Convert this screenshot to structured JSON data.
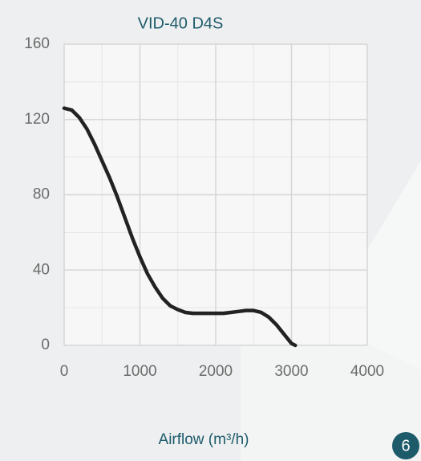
{
  "chart_data": {
    "type": "line",
    "title": "VID-40 D4S",
    "xlabel": "Airflow (m³/h)",
    "badge": "6",
    "x": [
      0,
      100,
      200,
      300,
      400,
      500,
      600,
      700,
      800,
      900,
      1000,
      1100,
      1200,
      1300,
      1400,
      1500,
      1600,
      1700,
      1800,
      1900,
      2000,
      2100,
      2200,
      2300,
      2400,
      2500,
      2600,
      2700,
      2800,
      2900,
      3000,
      3050
    ],
    "series": [
      {
        "name": "VID-40 D4S",
        "color": "#222222",
        "values": [
          126,
          125,
          121,
          115,
          107,
          98,
          89,
          79,
          68,
          57,
          47,
          38,
          31,
          25,
          21,
          19,
          17.5,
          17,
          17,
          17,
          17,
          17,
          17.5,
          18,
          18.5,
          18.5,
          17.5,
          15,
          11,
          6,
          1,
          0
        ]
      }
    ],
    "xlim": [
      0,
      4000
    ],
    "xticks": [
      0,
      1000,
      2000,
      3000,
      4000
    ],
    "xminor": [
      500,
      1500,
      2500,
      3500
    ],
    "ylim": [
      0,
      160
    ],
    "yticks": [
      0,
      40,
      80,
      120,
      160
    ],
    "yminor": [
      20,
      60,
      100,
      140
    ],
    "grid": true
  }
}
